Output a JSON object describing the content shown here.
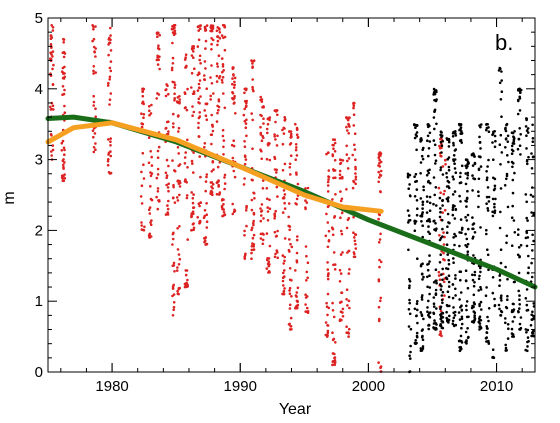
{
  "chart_data": {
    "type": "scatter",
    "panel_label": "b.",
    "xlabel": "Year",
    "ylabel": "m",
    "xlim": [
      1975,
      2013
    ],
    "ylim": [
      0,
      5
    ],
    "x_ticks": [
      1980,
      1990,
      2000,
      2010
    ],
    "y_ticks": [
      0,
      1,
      2,
      3,
      4,
      5
    ],
    "grid": false,
    "legend": "none",
    "series": [
      {
        "kind": "scatter-columns",
        "color": "#dd2222",
        "points": [
          {
            "x": 1975.3,
            "y_min": 3.0,
            "y_max": 4.9,
            "n": 40
          },
          {
            "x": 1976.2,
            "y_min": 2.7,
            "y_max": 4.7,
            "n": 45
          },
          {
            "x": 1978.6,
            "y_min": 3.1,
            "y_max": 4.9,
            "n": 30
          },
          {
            "x": 1979.8,
            "y_min": 2.8,
            "y_max": 4.9,
            "n": 35
          },
          {
            "x": 1982.4,
            "y_min": 2.0,
            "y_max": 4.0,
            "n": 30
          },
          {
            "x": 1983.0,
            "y_min": 1.9,
            "y_max": 3.8,
            "n": 30
          },
          {
            "x": 1983.6,
            "y_min": 2.3,
            "y_max": 4.8,
            "n": 35
          },
          {
            "x": 1984.3,
            "y_min": 2.2,
            "y_max": 4.1,
            "n": 30
          },
          {
            "x": 1984.8,
            "y_min": 0.8,
            "y_max": 4.9,
            "n": 55
          },
          {
            "x": 1985.2,
            "y_min": 1.1,
            "y_max": 3.9,
            "n": 40
          },
          {
            "x": 1985.8,
            "y_min": 1.2,
            "y_max": 4.5,
            "n": 40
          },
          {
            "x": 1986.3,
            "y_min": 2.0,
            "y_max": 4.6,
            "n": 40
          },
          {
            "x": 1986.8,
            "y_min": 2.1,
            "y_max": 4.9,
            "n": 45
          },
          {
            "x": 1987.3,
            "y_min": 1.8,
            "y_max": 4.9,
            "n": 45
          },
          {
            "x": 1987.8,
            "y_min": 2.5,
            "y_max": 4.9,
            "n": 45
          },
          {
            "x": 1988.3,
            "y_min": 2.5,
            "y_max": 4.9,
            "n": 40
          },
          {
            "x": 1988.7,
            "y_min": 2.2,
            "y_max": 4.9,
            "n": 40
          },
          {
            "x": 1989.5,
            "y_min": 2.2,
            "y_max": 4.3,
            "n": 35
          },
          {
            "x": 1990.4,
            "y_min": 1.6,
            "y_max": 4.0,
            "n": 35
          },
          {
            "x": 1991.0,
            "y_min": 1.6,
            "y_max": 4.4,
            "n": 40
          },
          {
            "x": 1991.7,
            "y_min": 1.8,
            "y_max": 3.9,
            "n": 35
          },
          {
            "x": 1992.2,
            "y_min": 1.4,
            "y_max": 3.6,
            "n": 35
          },
          {
            "x": 1992.8,
            "y_min": 1.6,
            "y_max": 3.7,
            "n": 35
          },
          {
            "x": 1993.4,
            "y_min": 1.1,
            "y_max": 3.6,
            "n": 40
          },
          {
            "x": 1993.9,
            "y_min": 0.6,
            "y_max": 3.4,
            "n": 40
          },
          {
            "x": 1994.4,
            "y_min": 0.9,
            "y_max": 3.5,
            "n": 40
          },
          {
            "x": 1995.2,
            "y_min": 0.8,
            "y_max": 2.6,
            "n": 25
          },
          {
            "x": 1996.8,
            "y_min": 0.5,
            "y_max": 3.1,
            "n": 40
          },
          {
            "x": 1997.3,
            "y_min": 0.1,
            "y_max": 3.3,
            "n": 45
          },
          {
            "x": 1997.9,
            "y_min": 0.7,
            "y_max": 3.0,
            "n": 35
          },
          {
            "x": 1998.4,
            "y_min": 0.5,
            "y_max": 3.6,
            "n": 40
          },
          {
            "x": 1998.9,
            "y_min": 1.6,
            "y_max": 3.8,
            "n": 35
          },
          {
            "x": 2000.9,
            "y_min": 0.0,
            "y_max": 3.1,
            "n": 45
          },
          {
            "x": 2005.6,
            "y_min": 0.5,
            "y_max": 3.3,
            "n": 25
          },
          {
            "x": 2005.9,
            "y_min": 1.0,
            "y_max": 3.0,
            "n": 20
          }
        ]
      },
      {
        "kind": "scatter-columns",
        "color": "#000000",
        "points": [
          {
            "x": 2003.2,
            "y_min": 0.0,
            "y_max": 2.8,
            "n": 30
          },
          {
            "x": 2003.7,
            "y_min": 0.4,
            "y_max": 3.5,
            "n": 45
          },
          {
            "x": 2004.2,
            "y_min": 0.3,
            "y_max": 3.3,
            "n": 50
          },
          {
            "x": 2004.7,
            "y_min": 0.6,
            "y_max": 3.5,
            "n": 55
          },
          {
            "x": 2005.2,
            "y_min": 0.6,
            "y_max": 4.0,
            "n": 60
          },
          {
            "x": 2005.7,
            "y_min": 0.6,
            "y_max": 3.4,
            "n": 55
          },
          {
            "x": 2006.2,
            "y_min": 0.7,
            "y_max": 3.3,
            "n": 55
          },
          {
            "x": 2006.7,
            "y_min": 0.6,
            "y_max": 3.4,
            "n": 55
          },
          {
            "x": 2007.2,
            "y_min": 0.3,
            "y_max": 3.5,
            "n": 55
          },
          {
            "x": 2007.7,
            "y_min": 0.4,
            "y_max": 3.0,
            "n": 50
          },
          {
            "x": 2008.2,
            "y_min": 0.7,
            "y_max": 3.1,
            "n": 50
          },
          {
            "x": 2008.7,
            "y_min": 0.6,
            "y_max": 3.5,
            "n": 45
          },
          {
            "x": 2009.3,
            "y_min": 0.4,
            "y_max": 3.5,
            "n": 40
          },
          {
            "x": 2009.8,
            "y_min": 0.2,
            "y_max": 3.4,
            "n": 35
          },
          {
            "x": 2010.3,
            "y_min": 0.8,
            "y_max": 4.3,
            "n": 35
          },
          {
            "x": 2010.8,
            "y_min": 0.3,
            "y_max": 3.5,
            "n": 35
          },
          {
            "x": 2011.3,
            "y_min": 0.5,
            "y_max": 3.4,
            "n": 40
          },
          {
            "x": 2011.8,
            "y_min": 0.6,
            "y_max": 4.0,
            "n": 40
          },
          {
            "x": 2012.4,
            "y_min": 0.3,
            "y_max": 3.6,
            "n": 40
          },
          {
            "x": 2012.8,
            "y_min": 0.5,
            "y_max": 3.5,
            "n": 35
          }
        ]
      },
      {
        "kind": "line",
        "color": "#1a6e1a",
        "x": [
          1975,
          1977,
          1980,
          1985,
          1990,
          1995,
          2000,
          2005,
          2010,
          2013
        ],
        "y": [
          3.58,
          3.6,
          3.52,
          3.25,
          2.9,
          2.55,
          2.15,
          1.8,
          1.45,
          1.2
        ]
      },
      {
        "kind": "line",
        "color": "#f5a020",
        "x": [
          1975,
          1977,
          1980,
          1985,
          1990,
          1995,
          1998,
          2001
        ],
        "y": [
          3.25,
          3.45,
          3.52,
          3.28,
          2.9,
          2.5,
          2.33,
          2.27
        ]
      }
    ]
  }
}
